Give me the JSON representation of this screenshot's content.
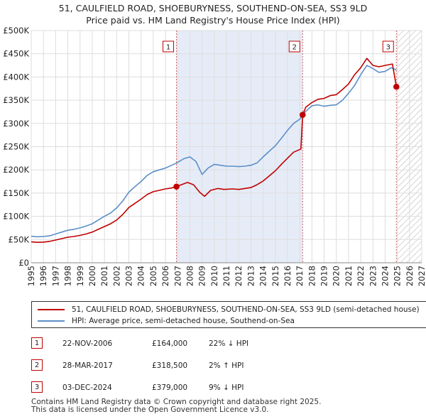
{
  "chart_data": {
    "type": "line",
    "title": "51, CAULFIELD ROAD, SHOEBURYNESS, SOUTHEND-ON-SEA, SS3 9LD",
    "subtitle": "Price paid vs. HM Land Registry's House Price Index (HPI)",
    "xlim": [
      1995,
      2027
    ],
    "ylim": [
      0,
      500000
    ],
    "x_ticks": [
      "1995",
      "1996",
      "1997",
      "1998",
      "1999",
      "2000",
      "2001",
      "2002",
      "2003",
      "2004",
      "2005",
      "2006",
      "2007",
      "2008",
      "2009",
      "2010",
      "2011",
      "2012",
      "2013",
      "2014",
      "2015",
      "2016",
      "2017",
      "2018",
      "2019",
      "2020",
      "2021",
      "2022",
      "2023",
      "2024",
      "2025",
      "2026",
      "2027"
    ],
    "y_ticks": [
      {
        "value": 0,
        "label": "£0"
      },
      {
        "value": 50000,
        "label": "£50K"
      },
      {
        "value": 100000,
        "label": "£100K"
      },
      {
        "value": 150000,
        "label": "£150K"
      },
      {
        "value": 200000,
        "label": "£200K"
      },
      {
        "value": 250000,
        "label": "£250K"
      },
      {
        "value": 300000,
        "label": "£300K"
      },
      {
        "value": 350000,
        "label": "£350K"
      },
      {
        "value": 400000,
        "label": "£400K"
      },
      {
        "value": 450000,
        "label": "£450K"
      },
      {
        "value": 500000,
        "label": "£500K"
      }
    ],
    "grid": true,
    "shaded_range": [
      2006.9,
      2017.24
    ],
    "future_hatch_from": 2025.0,
    "series": [
      {
        "name": "hpi",
        "color": "#5b8fc9",
        "points": [
          [
            1995,
            57000
          ],
          [
            1995.5,
            56000
          ],
          [
            1996,
            56500
          ],
          [
            1996.5,
            58000
          ],
          [
            1997,
            62000
          ],
          [
            1997.5,
            66000
          ],
          [
            1998,
            70000
          ],
          [
            1998.5,
            72000
          ],
          [
            1999,
            75000
          ],
          [
            1999.5,
            79000
          ],
          [
            2000,
            84000
          ],
          [
            2000.5,
            92000
          ],
          [
            2001,
            100000
          ],
          [
            2001.5,
            107000
          ],
          [
            2002,
            118000
          ],
          [
            2002.5,
            133000
          ],
          [
            2003,
            152000
          ],
          [
            2003.5,
            164000
          ],
          [
            2004,
            175000
          ],
          [
            2004.5,
            188000
          ],
          [
            2005,
            196000
          ],
          [
            2005.5,
            200000
          ],
          [
            2006,
            204000
          ],
          [
            2006.5,
            210000
          ],
          [
            2007,
            216000
          ],
          [
            2007.5,
            224000
          ],
          [
            2008,
            228000
          ],
          [
            2008.5,
            218000
          ],
          [
            2009,
            190000
          ],
          [
            2009.5,
            204000
          ],
          [
            2010,
            212000
          ],
          [
            2010.5,
            210000
          ],
          [
            2011,
            208000
          ],
          [
            2011.5,
            208000
          ],
          [
            2012,
            207000
          ],
          [
            2012.5,
            208000
          ],
          [
            2013,
            210000
          ],
          [
            2013.5,
            215000
          ],
          [
            2014,
            228000
          ],
          [
            2014.5,
            240000
          ],
          [
            2015,
            252000
          ],
          [
            2015.5,
            268000
          ],
          [
            2016,
            285000
          ],
          [
            2016.5,
            300000
          ],
          [
            2017,
            309000
          ],
          [
            2017.5,
            326000
          ],
          [
            2018,
            338000
          ],
          [
            2018.5,
            340000
          ],
          [
            2019,
            337000
          ],
          [
            2019.5,
            339000
          ],
          [
            2020,
            340000
          ],
          [
            2020.5,
            350000
          ],
          [
            2021,
            365000
          ],
          [
            2021.5,
            382000
          ],
          [
            2022,
            405000
          ],
          [
            2022.5,
            425000
          ],
          [
            2023,
            418000
          ],
          [
            2023.5,
            410000
          ],
          [
            2024,
            412000
          ],
          [
            2024.5,
            420000
          ],
          [
            2024.92,
            415000
          ]
        ]
      },
      {
        "name": "price",
        "color": "#c00000",
        "points": [
          [
            1995,
            45000
          ],
          [
            1995.5,
            44000
          ],
          [
            1996,
            44500
          ],
          [
            1996.5,
            46000
          ],
          [
            1997,
            49000
          ],
          [
            1997.5,
            52000
          ],
          [
            1998,
            55000
          ],
          [
            1998.5,
            56500
          ],
          [
            1999,
            59000
          ],
          [
            1999.5,
            62000
          ],
          [
            2000,
            66000
          ],
          [
            2000.5,
            72000
          ],
          [
            2001,
            78000
          ],
          [
            2001.5,
            84000
          ],
          [
            2002,
            92000
          ],
          [
            2002.5,
            104000
          ],
          [
            2003,
            119000
          ],
          [
            2003.5,
            128000
          ],
          [
            2004,
            137000
          ],
          [
            2004.5,
            147000
          ],
          [
            2005,
            153000
          ],
          [
            2005.5,
            156000
          ],
          [
            2006,
            159000
          ],
          [
            2006.5,
            161000
          ],
          [
            2006.9,
            164000
          ],
          [
            2007.3,
            168000
          ],
          [
            2007.8,
            173000
          ],
          [
            2008.3,
            168000
          ],
          [
            2008.8,
            152000
          ],
          [
            2009.2,
            143000
          ],
          [
            2009.7,
            156000
          ],
          [
            2010.3,
            160000
          ],
          [
            2010.8,
            158000
          ],
          [
            2011.5,
            159000
          ],
          [
            2012,
            158000
          ],
          [
            2012.5,
            160000
          ],
          [
            2013,
            162000
          ],
          [
            2013.5,
            168000
          ],
          [
            2014,
            176000
          ],
          [
            2014.5,
            187000
          ],
          [
            2015,
            198000
          ],
          [
            2015.5,
            212000
          ],
          [
            2016,
            225000
          ],
          [
            2016.5,
            238000
          ],
          [
            2017.1,
            245000
          ],
          [
            2017.24,
            318500
          ],
          [
            2017.5,
            335000
          ],
          [
            2018,
            345000
          ],
          [
            2018.5,
            352000
          ],
          [
            2019,
            354000
          ],
          [
            2019.5,
            360000
          ],
          [
            2020,
            362000
          ],
          [
            2020.5,
            373000
          ],
          [
            2021,
            385000
          ],
          [
            2021.5,
            405000
          ],
          [
            2022,
            420000
          ],
          [
            2022.5,
            440000
          ],
          [
            2023,
            425000
          ],
          [
            2023.5,
            422000
          ],
          [
            2024,
            425000
          ],
          [
            2024.6,
            428000
          ],
          [
            2024.92,
            379000
          ],
          [
            2025.0,
            376000
          ]
        ]
      }
    ],
    "sales": [
      {
        "label": "1",
        "x": 2006.9,
        "y": 164000
      },
      {
        "label": "2",
        "x": 2017.24,
        "y": 318500
      },
      {
        "label": "3",
        "x": 2024.92,
        "y": 379000
      }
    ]
  },
  "legend": {
    "price_label": "51, CAULFIELD ROAD, SHOEBURYNESS, SOUTHEND-ON-SEA, SS3 9LD (semi-detached house)",
    "hpi_label": "HPI: Average price, semi-detached house, Southend-on-Sea",
    "price_color": "#c00000",
    "hpi_color": "#5b8fc9"
  },
  "transactions": [
    {
      "num": "1",
      "date": "22-NOV-2006",
      "price": "£164,000",
      "hpi": "22% ↓ HPI"
    },
    {
      "num": "2",
      "date": "28-MAR-2017",
      "price": "£318,500",
      "hpi": "2% ↑ HPI"
    },
    {
      "num": "3",
      "date": "03-DEC-2024",
      "price": "£379,000",
      "hpi": "9% ↓ HPI"
    }
  ],
  "footer": {
    "line1": "Contains HM Land Registry data © Crown copyright and database right 2025.",
    "line2": "This data is licensed under the Open Government Licence v3.0."
  }
}
